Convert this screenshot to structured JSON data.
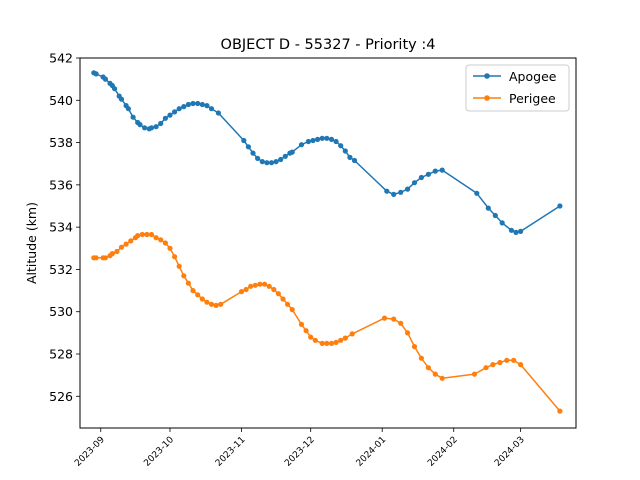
{
  "chart_data": {
    "type": "line",
    "title": "OBJECT D - 55327 - Priority :4",
    "xlabel": "",
    "ylabel": "Altitude (km)",
    "x_range": [
      "2023-08-23",
      "2024-03-25"
    ],
    "ylim": [
      524.5,
      542.0
    ],
    "x_ticks": [
      {
        "date": "2023-09-01",
        "label": "2023-09"
      },
      {
        "date": "2023-10-01",
        "label": "2023-10"
      },
      {
        "date": "2023-11-01",
        "label": "2023-11"
      },
      {
        "date": "2023-12-01",
        "label": "2023-12"
      },
      {
        "date": "2024-01-01",
        "label": "2024-01"
      },
      {
        "date": "2024-02-01",
        "label": "2024-02"
      },
      {
        "date": "2024-03-01",
        "label": "2024-03"
      }
    ],
    "y_ticks": [
      526,
      528,
      530,
      532,
      534,
      536,
      538,
      540,
      542
    ],
    "grid": false,
    "legend_position": "upper-right",
    "series": [
      {
        "name": "Apogee",
        "color": "#1f77b4",
        "points": [
          [
            "2023-08-29",
            541.3
          ],
          [
            "2023-08-30",
            541.25
          ],
          [
            "2023-09-02",
            541.1
          ],
          [
            "2023-09-03",
            541.0
          ],
          [
            "2023-09-05",
            540.8
          ],
          [
            "2023-09-06",
            540.7
          ],
          [
            "2023-09-07",
            540.55
          ],
          [
            "2023-09-09",
            540.2
          ],
          [
            "2023-09-10",
            540.05
          ],
          [
            "2023-09-12",
            539.75
          ],
          [
            "2023-09-13",
            539.6
          ],
          [
            "2023-09-15",
            539.2
          ],
          [
            "2023-09-17",
            538.95
          ],
          [
            "2023-09-18",
            538.85
          ],
          [
            "2023-09-20",
            538.7
          ],
          [
            "2023-09-22",
            538.65
          ],
          [
            "2023-09-23",
            538.7
          ],
          [
            "2023-09-25",
            538.75
          ],
          [
            "2023-09-27",
            538.9
          ],
          [
            "2023-09-29",
            539.15
          ],
          [
            "2023-10-01",
            539.3
          ],
          [
            "2023-10-03",
            539.45
          ],
          [
            "2023-10-05",
            539.6
          ],
          [
            "2023-10-07",
            539.7
          ],
          [
            "2023-10-09",
            539.8
          ],
          [
            "2023-10-11",
            539.85
          ],
          [
            "2023-10-13",
            539.85
          ],
          [
            "2023-10-15",
            539.8
          ],
          [
            "2023-10-17",
            539.75
          ],
          [
            "2023-10-19",
            539.6
          ],
          [
            "2023-10-22",
            539.4
          ],
          [
            "2023-11-02",
            538.1
          ],
          [
            "2023-11-04",
            537.8
          ],
          [
            "2023-11-06",
            537.5
          ],
          [
            "2023-11-08",
            537.25
          ],
          [
            "2023-11-10",
            537.1
          ],
          [
            "2023-11-12",
            537.05
          ],
          [
            "2023-11-14",
            537.05
          ],
          [
            "2023-11-16",
            537.1
          ],
          [
            "2023-11-18",
            537.2
          ],
          [
            "2023-11-20",
            537.35
          ],
          [
            "2023-11-22",
            537.5
          ],
          [
            "2023-11-23",
            537.55
          ],
          [
            "2023-11-27",
            537.9
          ],
          [
            "2023-11-30",
            538.05
          ],
          [
            "2023-12-02",
            538.1
          ],
          [
            "2023-12-04",
            538.15
          ],
          [
            "2023-12-06",
            538.2
          ],
          [
            "2023-12-08",
            538.2
          ],
          [
            "2023-12-10",
            538.15
          ],
          [
            "2023-12-12",
            538.05
          ],
          [
            "2023-12-14",
            537.85
          ],
          [
            "2023-12-16",
            537.6
          ],
          [
            "2023-12-18",
            537.3
          ],
          [
            "2023-12-20",
            537.15
          ],
          [
            "2024-01-03",
            535.7
          ],
          [
            "2024-01-06",
            535.55
          ],
          [
            "2024-01-09",
            535.65
          ],
          [
            "2024-01-12",
            535.8
          ],
          [
            "2024-01-15",
            536.1
          ],
          [
            "2024-01-18",
            536.35
          ],
          [
            "2024-01-21",
            536.5
          ],
          [
            "2024-01-24",
            536.65
          ],
          [
            "2024-01-27",
            536.7
          ],
          [
            "2024-02-11",
            535.6
          ],
          [
            "2024-02-16",
            534.9
          ],
          [
            "2024-02-19",
            534.55
          ],
          [
            "2024-02-22",
            534.2
          ],
          [
            "2024-02-26",
            533.85
          ],
          [
            "2024-02-28",
            533.75
          ],
          [
            "2024-03-01",
            533.8
          ],
          [
            "2024-03-18",
            535.0
          ]
        ]
      },
      {
        "name": "Perigee",
        "color": "#ff7f0e",
        "points": [
          [
            "2023-08-29",
            532.55
          ],
          [
            "2023-08-30",
            532.55
          ],
          [
            "2023-09-02",
            532.55
          ],
          [
            "2023-09-03",
            532.55
          ],
          [
            "2023-09-05",
            532.65
          ],
          [
            "2023-09-06",
            532.75
          ],
          [
            "2023-09-08",
            532.85
          ],
          [
            "2023-09-10",
            533.05
          ],
          [
            "2023-09-12",
            533.2
          ],
          [
            "2023-09-14",
            533.35
          ],
          [
            "2023-09-16",
            533.5
          ],
          [
            "2023-09-17",
            533.6
          ],
          [
            "2023-09-19",
            533.65
          ],
          [
            "2023-09-21",
            533.65
          ],
          [
            "2023-09-23",
            533.65
          ],
          [
            "2023-09-25",
            533.5
          ],
          [
            "2023-09-27",
            533.4
          ],
          [
            "2023-09-29",
            533.25
          ],
          [
            "2023-10-01",
            533.0
          ],
          [
            "2023-10-03",
            532.6
          ],
          [
            "2023-10-05",
            532.15
          ],
          [
            "2023-10-07",
            531.7
          ],
          [
            "2023-10-09",
            531.35
          ],
          [
            "2023-10-11",
            531.0
          ],
          [
            "2023-10-13",
            530.8
          ],
          [
            "2023-10-15",
            530.6
          ],
          [
            "2023-10-17",
            530.45
          ],
          [
            "2023-10-19",
            530.35
          ],
          [
            "2023-10-21",
            530.3
          ],
          [
            "2023-10-23",
            530.35
          ],
          [
            "2023-11-01",
            530.95
          ],
          [
            "2023-11-03",
            531.05
          ],
          [
            "2023-11-05",
            531.2
          ],
          [
            "2023-11-07",
            531.25
          ],
          [
            "2023-11-09",
            531.3
          ],
          [
            "2023-11-11",
            531.3
          ],
          [
            "2023-11-13",
            531.2
          ],
          [
            "2023-11-15",
            531.05
          ],
          [
            "2023-11-17",
            530.85
          ],
          [
            "2023-11-19",
            530.6
          ],
          [
            "2023-11-21",
            530.35
          ],
          [
            "2023-11-23",
            530.1
          ],
          [
            "2023-11-27",
            529.4
          ],
          [
            "2023-11-29",
            529.1
          ],
          [
            "2023-12-01",
            528.8
          ],
          [
            "2023-12-03",
            528.65
          ],
          [
            "2023-12-06",
            528.5
          ],
          [
            "2023-12-08",
            528.5
          ],
          [
            "2023-12-10",
            528.5
          ],
          [
            "2023-12-12",
            528.55
          ],
          [
            "2023-12-14",
            528.65
          ],
          [
            "2023-12-16",
            528.75
          ],
          [
            "2023-12-19",
            528.95
          ],
          [
            "2024-01-02",
            529.7
          ],
          [
            "2024-01-06",
            529.65
          ],
          [
            "2024-01-09",
            529.45
          ],
          [
            "2024-01-12",
            529.0
          ],
          [
            "2024-01-15",
            528.35
          ],
          [
            "2024-01-18",
            527.8
          ],
          [
            "2024-01-21",
            527.35
          ],
          [
            "2024-01-24",
            527.05
          ],
          [
            "2024-01-27",
            526.85
          ],
          [
            "2024-02-10",
            527.05
          ],
          [
            "2024-02-15",
            527.35
          ],
          [
            "2024-02-18",
            527.5
          ],
          [
            "2024-02-21",
            527.6
          ],
          [
            "2024-02-24",
            527.7
          ],
          [
            "2024-02-27",
            527.7
          ],
          [
            "2024-03-01",
            527.5
          ],
          [
            "2024-03-18",
            525.3
          ]
        ]
      }
    ]
  }
}
